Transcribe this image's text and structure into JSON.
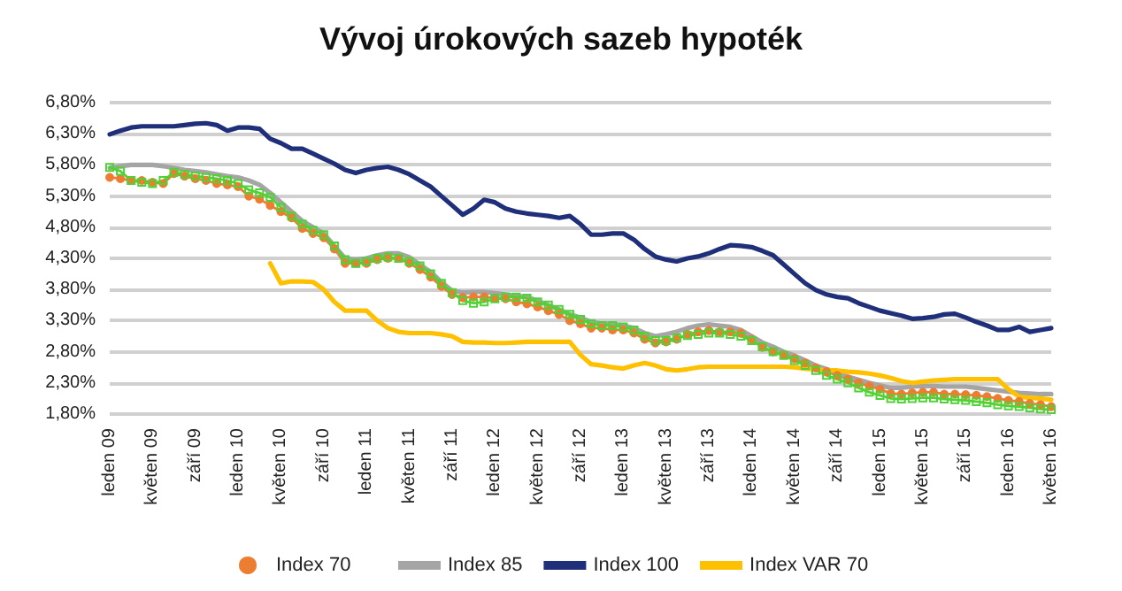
{
  "chart_data": {
    "type": "line",
    "title": "Vývoj úrokových sazeb hypoték",
    "categories": [
      "leden 09",
      null,
      null,
      null,
      "květen 09",
      null,
      null,
      null,
      "září 09",
      null,
      null,
      null,
      "leden 10",
      null,
      null,
      null,
      "květen 10",
      null,
      null,
      null,
      "září 10",
      null,
      null,
      null,
      "leden 11",
      null,
      null,
      null,
      "květen 11",
      null,
      null,
      null,
      "září 11",
      null,
      null,
      null,
      "leden 12",
      null,
      null,
      null,
      "květen 12",
      null,
      null,
      null,
      "září 12",
      null,
      null,
      null,
      "leden 13",
      null,
      null,
      null,
      "květen 13",
      null,
      null,
      null,
      "září 13",
      null,
      null,
      null,
      "leden 14",
      null,
      null,
      null,
      "květen 14",
      null,
      null,
      null,
      "září 14",
      null,
      null,
      null,
      "leden 15",
      null,
      null,
      null,
      "květen 15",
      null,
      null,
      null,
      "září 15",
      null,
      null,
      null,
      "leden 16",
      null,
      null,
      null,
      "květen 16"
    ],
    "series": [
      {
        "name": "Index 70",
        "color": "#ed7d31",
        "marker": "circle",
        "values": [
          5.6,
          5.58,
          5.55,
          5.55,
          5.52,
          5.5,
          5.66,
          5.62,
          5.58,
          5.55,
          5.5,
          5.48,
          5.45,
          5.3,
          5.25,
          5.15,
          5.05,
          4.95,
          4.78,
          4.7,
          4.63,
          4.45,
          4.22,
          4.22,
          4.22,
          4.28,
          4.3,
          4.3,
          4.22,
          4.12,
          4.0,
          3.85,
          3.72,
          3.67,
          3.68,
          3.68,
          3.66,
          3.65,
          3.6,
          3.57,
          3.52,
          3.46,
          3.4,
          3.3,
          3.25,
          3.18,
          3.18,
          3.15,
          3.15,
          3.1,
          3.0,
          2.94,
          2.96,
          3.0,
          3.08,
          3.12,
          3.14,
          3.12,
          3.12,
          3.1,
          3.0,
          2.87,
          2.8,
          2.75,
          2.69,
          2.62,
          2.54,
          2.48,
          2.42,
          2.36,
          2.3,
          2.25,
          2.2,
          2.13,
          2.12,
          2.14,
          2.15,
          2.15,
          2.12,
          2.12,
          2.11,
          2.1,
          2.08,
          2.05,
          2.02,
          2.0,
          1.97,
          1.95,
          1.92
        ]
      },
      {
        "name": "Index 85",
        "color": "#a5a5a5",
        "values": [
          5.75,
          5.78,
          5.8,
          5.8,
          5.8,
          5.78,
          5.75,
          5.72,
          5.7,
          5.68,
          5.65,
          5.62,
          5.6,
          5.55,
          5.48,
          5.35,
          5.2,
          5.05,
          4.9,
          4.8,
          4.7,
          4.5,
          4.3,
          4.28,
          4.3,
          4.35,
          4.38,
          4.38,
          4.32,
          4.2,
          4.08,
          3.92,
          3.78,
          3.75,
          3.76,
          3.76,
          3.74,
          3.72,
          3.7,
          3.68,
          3.62,
          3.55,
          3.48,
          3.4,
          3.35,
          3.28,
          3.25,
          3.25,
          3.22,
          3.18,
          3.1,
          3.05,
          3.08,
          3.12,
          3.18,
          3.22,
          3.24,
          3.22,
          3.2,
          3.15,
          3.05,
          2.95,
          2.88,
          2.8,
          2.74,
          2.66,
          2.58,
          2.52,
          2.46,
          2.4,
          2.35,
          2.3,
          2.26,
          2.22,
          2.22,
          2.24,
          2.25,
          2.25,
          2.24,
          2.24,
          2.24,
          2.22,
          2.2,
          2.18,
          2.16,
          2.14,
          2.13,
          2.12,
          2.12
        ]
      },
      {
        "name": "Index 100",
        "color": "#1f2f7a",
        "values": [
          6.29,
          6.35,
          6.4,
          6.42,
          6.42,
          6.42,
          6.42,
          6.44,
          6.46,
          6.47,
          6.44,
          6.35,
          6.4,
          6.4,
          6.38,
          6.22,
          6.15,
          6.06,
          6.06,
          5.98,
          5.9,
          5.82,
          5.72,
          5.67,
          5.72,
          5.75,
          5.77,
          5.72,
          5.65,
          5.55,
          5.45,
          5.3,
          5.15,
          5.0,
          5.1,
          5.24,
          5.2,
          5.1,
          5.05,
          5.02,
          5.0,
          4.98,
          4.95,
          4.98,
          4.85,
          4.68,
          4.68,
          4.7,
          4.7,
          4.6,
          4.45,
          4.33,
          4.28,
          4.25,
          4.3,
          4.33,
          4.38,
          4.45,
          4.51,
          4.5,
          4.48,
          4.42,
          4.35,
          4.2,
          4.05,
          3.9,
          3.79,
          3.72,
          3.68,
          3.66,
          3.58,
          3.52,
          3.46,
          3.42,
          3.38,
          3.33,
          3.34,
          3.36,
          3.4,
          3.41,
          3.35,
          3.28,
          3.22,
          3.15,
          3.15,
          3.2,
          3.12,
          3.15,
          3.18
        ]
      },
      {
        "color": "#4fd334",
        "marker": "square",
        "values": [
          5.76,
          5.7,
          5.55,
          5.52,
          5.5,
          5.55,
          5.68,
          5.65,
          5.62,
          5.6,
          5.58,
          5.55,
          5.5,
          5.4,
          5.35,
          5.28,
          5.12,
          4.98,
          4.85,
          4.75,
          4.68,
          4.5,
          4.28,
          4.22,
          4.25,
          4.3,
          4.32,
          4.3,
          4.25,
          4.18,
          4.05,
          3.9,
          3.75,
          3.62,
          3.58,
          3.6,
          3.65,
          3.68,
          3.68,
          3.66,
          3.6,
          3.55,
          3.48,
          3.4,
          3.32,
          3.25,
          3.22,
          3.22,
          3.2,
          3.15,
          3.05,
          2.98,
          2.98,
          3.02,
          3.06,
          3.08,
          3.1,
          3.1,
          3.08,
          3.05,
          2.98,
          2.88,
          2.8,
          2.74,
          2.66,
          2.58,
          2.5,
          2.42,
          2.36,
          2.3,
          2.22,
          2.15,
          2.1,
          2.05,
          2.04,
          2.05,
          2.06,
          2.06,
          2.04,
          2.03,
          2.02,
          2.0,
          1.98,
          1.95,
          1.93,
          1.92,
          1.9,
          1.88,
          1.87
        ]
      },
      {
        "name": "Index VAR 70",
        "color": "#ffc000",
        "values": [
          null,
          null,
          null,
          null,
          null,
          null,
          null,
          null,
          null,
          null,
          null,
          null,
          null,
          null,
          null,
          4.22,
          3.9,
          3.93,
          3.93,
          3.92,
          3.8,
          3.6,
          3.46,
          3.46,
          3.46,
          3.3,
          3.18,
          3.12,
          3.1,
          3.1,
          3.1,
          3.08,
          3.05,
          2.96,
          2.95,
          2.95,
          2.94,
          2.94,
          2.95,
          2.96,
          2.96,
          2.96,
          2.96,
          2.96,
          2.75,
          2.6,
          2.58,
          2.55,
          2.53,
          2.58,
          2.62,
          2.58,
          2.52,
          2.5,
          2.52,
          2.55,
          2.56,
          2.56,
          2.56,
          2.56,
          2.56,
          2.56,
          2.56,
          2.56,
          2.55,
          2.53,
          2.52,
          2.5,
          2.5,
          2.48,
          2.47,
          2.45,
          2.42,
          2.38,
          2.33,
          2.3,
          2.32,
          2.34,
          2.35,
          2.36,
          2.36,
          2.36,
          2.36,
          2.36,
          2.2,
          2.08,
          2.06,
          2.05,
          2.03
        ]
      }
    ],
    "ylim": [
      1.8,
      6.8
    ],
    "yticks": [
      {
        "value": 1.8,
        "label": "1,80%"
      },
      {
        "value": 2.3,
        "label": "2,30%"
      },
      {
        "value": 2.8,
        "label": "2,80%"
      },
      {
        "value": 3.3,
        "label": "3,30%"
      },
      {
        "value": 3.8,
        "label": "3,80%"
      },
      {
        "value": 4.3,
        "label": "4,30%"
      },
      {
        "value": 4.8,
        "label": "4,80%"
      },
      {
        "value": 5.3,
        "label": "5,30%"
      },
      {
        "value": 5.8,
        "label": "5,80%"
      },
      {
        "value": 6.3,
        "label": "6,30%"
      },
      {
        "value": 6.8,
        "label": "6,80%"
      }
    ],
    "grid": "y",
    "legend": "bottom",
    "line_style": "solid"
  }
}
